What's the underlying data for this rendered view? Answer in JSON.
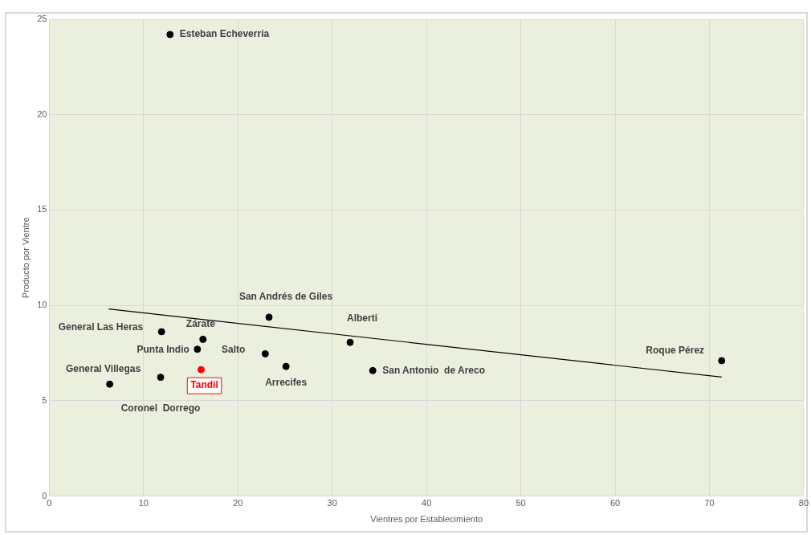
{
  "chart_data": {
    "type": "scatter",
    "xlabel": "Vientres por Establecimiento",
    "ylabel": "Producto por Vientre",
    "xlim": [
      0,
      80
    ],
    "xticks": [
      0,
      10,
      20,
      30,
      40,
      50,
      60,
      70,
      80
    ],
    "ylim": [
      0,
      25
    ],
    "yticks": [
      0,
      5,
      10,
      15,
      20,
      25
    ],
    "grid": true,
    "legend": false,
    "series": [
      {
        "marker": "circle",
        "color": "#000000",
        "x": [
          12.8,
          23.3,
          31.9,
          71.3,
          11.9,
          16.3,
          15.7,
          22.9,
          25.1,
          34.3,
          6.4,
          11.8,
          16.1
        ],
        "values": [
          24.2,
          9.38,
          8.06,
          7.1,
          8.62,
          8.22,
          7.7,
          7.46,
          6.8,
          6.58,
          5.87,
          6.23,
          6.63
        ],
        "colors": [
          "#000000",
          "#000000",
          "#000000",
          "#000000",
          "#000000",
          "#000000",
          "#000000",
          "#000000",
          "#000000",
          "#000000",
          "#000000",
          "#000000",
          "#ff0000"
        ],
        "value_labels": [
          "Esteban Echeverría",
          "San Andrés de Giles",
          "Alberti",
          "Roque Pérez",
          "General Las Heras",
          "Zárate",
          "Punta Indio",
          "Salto",
          "Arrecifes",
          "San Antonio  de Areco",
          "General Villegas",
          "Coronel  Dorrego",
          "Tandil"
        ]
      },
      {
        "type": "line",
        "color": "#000000",
        "x": [
          6.3,
          71.3
        ],
        "values": [
          9.81,
          6.24
        ]
      }
    ]
  }
}
